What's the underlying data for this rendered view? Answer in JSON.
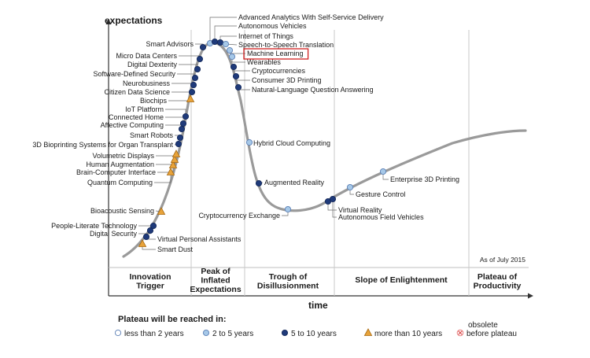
{
  "chart_data": {
    "type": "scatter",
    "subtype": "hype-cycle",
    "ylabel": "expectations",
    "xlabel": "time",
    "as_of": "As of July 2015",
    "phases": [
      "Innovation Trigger",
      "Peak of Inflated Expectations",
      "Trough of Disillusionment",
      "Slope of Enlightenment",
      "Plateau of Productivity"
    ],
    "legend": {
      "title": "Plateau will be reached in:",
      "items": [
        {
          "key": "lt2",
          "label": "less than 2 years",
          "marker": "circle",
          "color": "#ffffff"
        },
        {
          "key": "2to5",
          "label": "2 to 5 years",
          "marker": "circle",
          "color": "#a6c8e8"
        },
        {
          "key": "5to10",
          "label": "5 to 10 years",
          "marker": "circle",
          "color": "#1f3a7a"
        },
        {
          "key": "gt10",
          "label": "more than 10 years",
          "marker": "triangle",
          "color": "#e8a33a"
        },
        {
          "key": "obsolete",
          "label": "obsolete before plateau",
          "marker": "cross",
          "color": "#e88080"
        }
      ]
    },
    "highlighted": "Machine Learning",
    "technologies": [
      {
        "name": "Smart Dust",
        "phase": "Innovation Trigger",
        "plateau": "gt10"
      },
      {
        "name": "Virtual Personal Assistants",
        "phase": "Innovation Trigger",
        "plateau": "5to10"
      },
      {
        "name": "Digital Security",
        "phase": "Innovation Trigger",
        "plateau": "5to10"
      },
      {
        "name": "People-Literate Technology",
        "phase": "Innovation Trigger",
        "plateau": "5to10"
      },
      {
        "name": "Bioacoustic Sensing",
        "phase": "Innovation Trigger",
        "plateau": "gt10"
      },
      {
        "name": "Quantum Computing",
        "phase": "Innovation Trigger",
        "plateau": "gt10"
      },
      {
        "name": "Brain-Computer Interface",
        "phase": "Innovation Trigger",
        "plateau": "gt10"
      },
      {
        "name": "Human Augmentation",
        "phase": "Innovation Trigger",
        "plateau": "gt10"
      },
      {
        "name": "Volumetric Displays",
        "phase": "Innovation Trigger",
        "plateau": "gt10"
      },
      {
        "name": "3D Bioprinting Systems for Organ Transplant",
        "phase": "Innovation Trigger",
        "plateau": "5to10"
      },
      {
        "name": "Smart Robots",
        "phase": "Innovation Trigger",
        "plateau": "5to10"
      },
      {
        "name": "Affective  Computing",
        "phase": "Innovation Trigger",
        "plateau": "5to10"
      },
      {
        "name": "Connected Home",
        "phase": "Innovation Trigger",
        "plateau": "5to10"
      },
      {
        "name": "IoT Platform",
        "phase": "Innovation Trigger",
        "plateau": "5to10"
      },
      {
        "name": "Biochips",
        "phase": "Innovation Trigger",
        "plateau": "gt10"
      },
      {
        "name": "Citizen Data Science",
        "phase": "Innovation Trigger",
        "plateau": "5to10"
      },
      {
        "name": "Neurobusiness",
        "phase": "Innovation Trigger",
        "plateau": "5to10"
      },
      {
        "name": "Software-Defined Security",
        "phase": "Innovation Trigger",
        "plateau": "5to10"
      },
      {
        "name": "Digital Dexterity",
        "phase": "Innovation Trigger",
        "plateau": "5to10"
      },
      {
        "name": "Micro Data Centers",
        "phase": "Innovation Trigger",
        "plateau": "5to10"
      },
      {
        "name": "Smart Advisors",
        "phase": "Innovation Trigger",
        "plateau": "5to10"
      },
      {
        "name": "Advanced Analytics With Self-Service Delivery",
        "phase": "Peak of Inflated Expectations",
        "plateau": "2to5"
      },
      {
        "name": "Autonomous Vehicles",
        "phase": "Peak of Inflated Expectations",
        "plateau": "5to10"
      },
      {
        "name": "Internet of Things",
        "phase": "Peak of Inflated Expectations",
        "plateau": "5to10"
      },
      {
        "name": "Speech-to-Speech Translation",
        "phase": "Peak of Inflated Expectations",
        "plateau": "2to5"
      },
      {
        "name": "Machine Learning",
        "phase": "Peak of Inflated Expectations",
        "plateau": "2to5"
      },
      {
        "name": "Wearables",
        "phase": "Peak of Inflated Expectations",
        "plateau": "2to5"
      },
      {
        "name": "Cryptocurrencies",
        "phase": "Peak of Inflated Expectations",
        "plateau": "5to10"
      },
      {
        "name": "Consumer 3D Printing",
        "phase": "Peak of Inflated Expectations",
        "plateau": "5to10"
      },
      {
        "name": "Natural-Language Question Answering",
        "phase": "Peak of Inflated Expectations",
        "plateau": "5to10"
      },
      {
        "name": "Hybrid Cloud Computing",
        "phase": "Trough of Disillusionment",
        "plateau": "2to5"
      },
      {
        "name": "Augmented Reality",
        "phase": "Trough of Disillusionment",
        "plateau": "5to10"
      },
      {
        "name": "Cryptocurrency Exchange",
        "phase": "Trough of Disillusionment",
        "plateau": "2to5"
      },
      {
        "name": "Virtual Reality",
        "phase": "Slope of Enlightenment",
        "plateau": "5to10"
      },
      {
        "name": "Autonomous Field Vehicles",
        "phase": "Slope of Enlightenment",
        "plateau": "5to10"
      },
      {
        "name": "Gesture Control",
        "phase": "Slope of Enlightenment",
        "plateau": "2to5"
      },
      {
        "name": "Enterprise 3D Printing",
        "phase": "Slope of Enlightenment",
        "plateau": "2to5"
      }
    ]
  },
  "colors": {
    "curve": "#9a9a9a",
    "axis": "#333333",
    "gridline": "#c8c8c8",
    "highlight_box": "#d11f1f",
    "dot_stroke": "#5b7fb5"
  }
}
